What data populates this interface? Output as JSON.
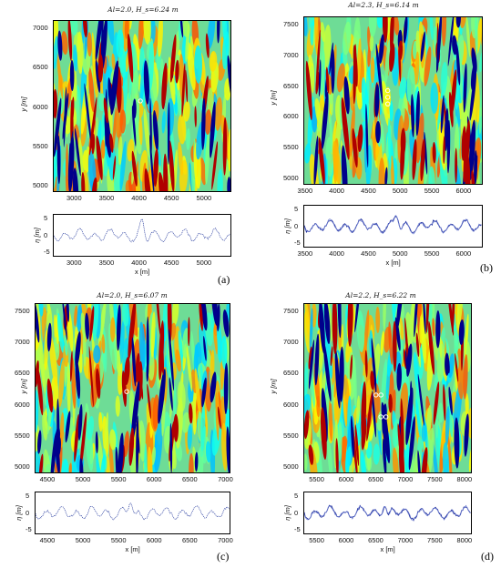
{
  "panels": [
    {
      "id": "a",
      "title": "Al=2.0, H_s=6.24 m",
      "label": "(a)",
      "map": {
        "xticks": [
          "3000",
          "3500",
          "4000",
          "4500",
          "5000"
        ],
        "xrange": [
          2650,
          5400
        ],
        "yticks": [
          "7000",
          "6500",
          "6000",
          "5500",
          "5000"
        ]
      },
      "series": {
        "yticks": [
          "5",
          "0",
          "-5"
        ],
        "xticks": [
          "3000",
          "3500",
          "4000",
          "4500",
          "5000"
        ],
        "ylabel": "η [m]",
        "xlabel": "x [m]",
        "style": "dotted"
      }
    },
    {
      "id": "b",
      "title": "Al=2.3, H_s=6.14 m",
      "label": "(b)",
      "map": {
        "xticks": [
          "3500",
          "4000",
          "4500",
          "5000",
          "5500",
          "6000"
        ],
        "xrange": [
          3450,
          6280
        ],
        "yticks": [
          "7500",
          "7000",
          "6500",
          "6000",
          "5500",
          "5000"
        ]
      },
      "series": {
        "yticks": [
          "5",
          "0",
          "-5"
        ],
        "xticks": [
          "3500",
          "4000",
          "4500",
          "5000",
          "5500",
          "6000"
        ],
        "ylabel": "η [m]",
        "xlabel": "x [m]",
        "style": "solid"
      }
    },
    {
      "id": "c",
      "title": "Al=2.0, H_s=6.07 m",
      "label": "(c)",
      "map": {
        "xticks": [
          "4500",
          "5000",
          "5500",
          "6000",
          "6500",
          "7000"
        ],
        "xrange": [
          4300,
          7050
        ],
        "yticks": [
          "7500",
          "7000",
          "6500",
          "6000",
          "5500",
          "5000"
        ]
      },
      "series": {
        "yticks": [
          "5",
          "0",
          "-5"
        ],
        "xticks": [
          "4500",
          "5000",
          "5500",
          "6000",
          "6500",
          "7000"
        ],
        "ylabel": "η [m]",
        "xlabel": "x [m]",
        "style": "dotted"
      }
    },
    {
      "id": "d",
      "title": "Al=2.2, H_s=6.22 m",
      "label": "(d)",
      "map": {
        "xticks": [
          "5500",
          "6000",
          "6500",
          "7000",
          "7500",
          "8000"
        ],
        "xrange": [
          5250,
          8100
        ],
        "yticks": [
          "7500",
          "7000",
          "6500",
          "6000",
          "5500",
          "5000"
        ]
      },
      "series": {
        "yticks": [
          "5",
          "0",
          "-5"
        ],
        "xticks": [
          "5500",
          "6000",
          "6500",
          "7000",
          "7500",
          "8000"
        ],
        "ylabel": "η [m]",
        "xlabel": "x [m]",
        "style": "solid"
      }
    }
  ],
  "map_ylabel": "y [m]"
}
